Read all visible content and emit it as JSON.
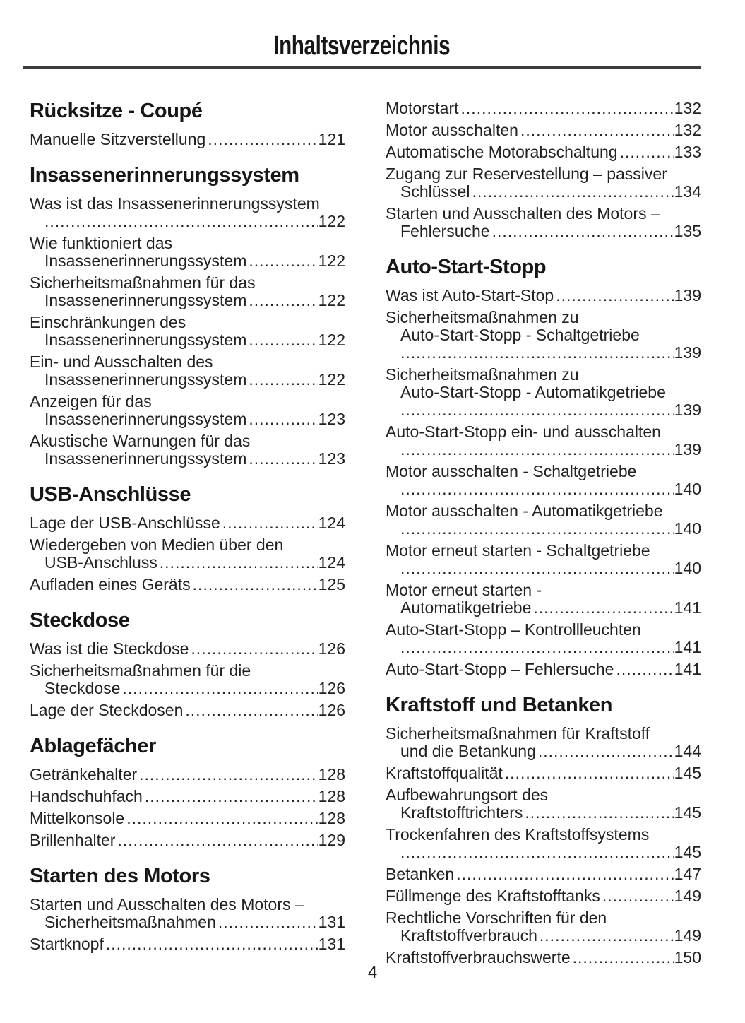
{
  "page": {
    "title": "Inhaltsverzeichnis",
    "page_number": "4",
    "text_color": "#242122",
    "heading_color": "#19161a",
    "rule_color": "#3d3d3f",
    "background_color": "#ffffff"
  },
  "toc": {
    "columns": [
      {
        "sections": [
          {
            "heading": "Rücksitze - Coupé",
            "entries": [
              {
                "pre": [],
                "tail": "Manuelle Sitzverstellung",
                "page": "121"
              }
            ]
          },
          {
            "heading": "Insassenerinnerungssystem",
            "entries": [
              {
                "pre": [
                  "Was ist das Insassenerinnerungssystem"
                ],
                "tail": "",
                "page": "122"
              },
              {
                "pre": [
                  "Wie funktioniert das"
                ],
                "tail": "Insassenerinnerungssystem",
                "page": "122"
              },
              {
                "pre": [
                  "Sicherheitsmaßnahmen für das"
                ],
                "tail": "Insassenerinnerungssystem",
                "page": "122"
              },
              {
                "pre": [
                  "Einschränkungen des"
                ],
                "tail": "Insassenerinnerungssystem",
                "page": "122"
              },
              {
                "pre": [
                  "Ein- und Ausschalten des"
                ],
                "tail": "Insassenerinnerungssystem",
                "page": "122"
              },
              {
                "pre": [
                  "Anzeigen für das"
                ],
                "tail": "Insassenerinnerungssystem",
                "page": "123"
              },
              {
                "pre": [
                  "Akustische Warnungen für das"
                ],
                "tail": "Insassenerinnerungssystem",
                "page": "123"
              }
            ]
          },
          {
            "heading": "USB-Anschlüsse",
            "entries": [
              {
                "pre": [],
                "tail": "Lage der USB-Anschlüsse",
                "page": "124"
              },
              {
                "pre": [
                  "Wiedergeben von Medien über den"
                ],
                "tail": "USB-Anschluss",
                "page": "124"
              },
              {
                "pre": [],
                "tail": "Aufladen eines Geräts",
                "page": "125"
              }
            ]
          },
          {
            "heading": "Steckdose",
            "entries": [
              {
                "pre": [],
                "tail": "Was ist die Steckdose",
                "page": "126"
              },
              {
                "pre": [
                  "Sicherheitsmaßnahmen für die"
                ],
                "tail": "Steckdose",
                "page": "126"
              },
              {
                "pre": [],
                "tail": "Lage der Steckdosen",
                "page": "126"
              }
            ]
          },
          {
            "heading": "Ablagefächer",
            "entries": [
              {
                "pre": [],
                "tail": "Getränkehalter",
                "page": "128"
              },
              {
                "pre": [],
                "tail": "Handschuhfach",
                "page": "128"
              },
              {
                "pre": [],
                "tail": "Mittelkonsole",
                "page": "128"
              },
              {
                "pre": [],
                "tail": "Brillenhalter",
                "page": "129"
              }
            ]
          },
          {
            "heading": "Starten des Motors",
            "entries": [
              {
                "pre": [
                  "Starten und Ausschalten des Motors –"
                ],
                "tail": "Sicherheitsmaßnahmen",
                "page": "131"
              },
              {
                "pre": [],
                "tail": "Startknopf",
                "page": "131"
              }
            ]
          }
        ]
      },
      {
        "sections": [
          {
            "heading": null,
            "entries": [
              {
                "pre": [],
                "tail": "Motorstart",
                "page": "132"
              },
              {
                "pre": [],
                "tail": "Motor ausschalten",
                "page": "132"
              },
              {
                "pre": [],
                "tail": "Automatische Motorabschaltung",
                "page": "133"
              },
              {
                "pre": [
                  "Zugang zur Reservestellung – passiver"
                ],
                "tail": "Schlüssel",
                "page": "134"
              },
              {
                "pre": [
                  "Starten und Ausschalten des Motors –"
                ],
                "tail": "Fehlersuche",
                "page": "135"
              }
            ]
          },
          {
            "heading": "Auto-Start-Stopp",
            "entries": [
              {
                "pre": [],
                "tail": "Was ist Auto-Start-Stop",
                "page": "139"
              },
              {
                "pre": [
                  "Sicherheitsmaßnahmen zu",
                  "Auto-Start-Stopp - Schaltgetriebe"
                ],
                "tail": "",
                "page": "139"
              },
              {
                "pre": [
                  "Sicherheitsmaßnahmen zu",
                  "Auto-Start-Stopp - Automatikgetriebe"
                ],
                "tail": "",
                "page": "139"
              },
              {
                "pre": [
                  "Auto-Start-Stopp ein- und ausschalten"
                ],
                "tail": "",
                "page": "139"
              },
              {
                "pre": [
                  "Motor ausschalten - Schaltgetriebe"
                ],
                "tail": "",
                "page": "140"
              },
              {
                "pre": [
                  "Motor ausschalten - Automatikgetriebe"
                ],
                "tail": "",
                "page": "140"
              },
              {
                "pre": [
                  "Motor erneut starten - Schaltgetriebe"
                ],
                "tail": "",
                "page": "140"
              },
              {
                "pre": [
                  "Motor erneut starten -"
                ],
                "tail": "Automatikgetriebe",
                "page": "141"
              },
              {
                "pre": [
                  "Auto-Start-Stopp – Kontrollleuchten"
                ],
                "tail": "",
                "page": "141"
              },
              {
                "pre": [],
                "tail": "Auto-Start-Stopp – Fehlersuche",
                "page": "141"
              }
            ]
          },
          {
            "heading": "Kraftstoff und Betanken",
            "entries": [
              {
                "pre": [
                  "Sicherheitsmaßnahmen für Kraftstoff"
                ],
                "tail": "und die Betankung",
                "page": "144"
              },
              {
                "pre": [],
                "tail": "Kraftstoffqualität",
                "page": "145"
              },
              {
                "pre": [
                  "Aufbewahrungsort des"
                ],
                "tail": "Kraftstofftrichters",
                "page": "145"
              },
              {
                "pre": [
                  "Trockenfahren des Kraftstoffsystems"
                ],
                "tail": "",
                "page": "145"
              },
              {
                "pre": [],
                "tail": "Betanken",
                "page": "147"
              },
              {
                "pre": [],
                "tail": "Füllmenge des Kraftstofftanks",
                "page": "149"
              },
              {
                "pre": [
                  "Rechtliche Vorschriften für den"
                ],
                "tail": "Kraftstoffverbrauch",
                "page": "149"
              },
              {
                "pre": [],
                "tail": "Kraftstoffverbrauchswerte",
                "page": "150"
              }
            ]
          }
        ]
      }
    ]
  }
}
